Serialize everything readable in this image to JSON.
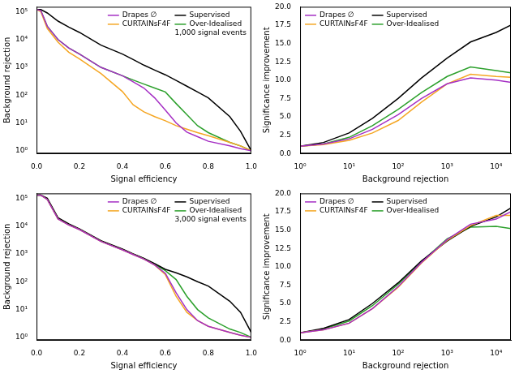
{
  "chart_data": [
    {
      "type": "line",
      "xlabel": "Signal efficiency",
      "ylabel": "Background rejection",
      "annotation": "1,000 signal events",
      "log": "y",
      "grid": false,
      "legend": "upper right",
      "xlim": [
        0,
        1
      ],
      "ylim": [
        0.8,
        150000
      ],
      "xticks": [
        {
          "value": 0,
          "label": "0.0"
        },
        {
          "value": 0.2,
          "label": "0.2"
        },
        {
          "value": 0.4,
          "label": "0.4"
        },
        {
          "value": 0.6,
          "label": "0.6"
        },
        {
          "value": 0.8,
          "label": "0.8"
        },
        {
          "value": 1,
          "label": "1.0"
        }
      ],
      "yticks": [
        {
          "value": 1,
          "label": "10⁰"
        },
        {
          "value": 10,
          "label": "10¹"
        },
        {
          "value": 100,
          "label": "10²"
        },
        {
          "value": 1000,
          "label": "10³"
        },
        {
          "value": 10000,
          "label": "10⁴"
        },
        {
          "value": 100000,
          "label": "10⁵"
        }
      ],
      "x": [
        0,
        0.02,
        0.05,
        0.1,
        0.15,
        0.2,
        0.3,
        0.4,
        0.45,
        0.5,
        0.55,
        0.6,
        0.65,
        0.7,
        0.75,
        0.8,
        0.9,
        0.95,
        1.0
      ],
      "series": [
        {
          "name": "Drapes ∅",
          "color": "#a52fc4",
          "values": [
            120000,
            110000,
            30000,
            10000,
            5000,
            3000,
            1000,
            500,
            300,
            180,
            80,
            29,
            10,
            4.7,
            3.2,
            2.2,
            1.5,
            1.2,
            1
          ]
        },
        {
          "name": "CURTAINsF4F",
          "color": "#f5a623",
          "values": [
            120000,
            100000,
            25000,
            8000,
            3500,
            2000,
            600,
            135,
            45,
            25,
            17,
            12,
            8,
            6,
            4.5,
            3.5,
            2,
            1.5,
            1
          ]
        },
        {
          "name": "Supervised",
          "color": "#000000",
          "values": [
            120000,
            120000,
            90000,
            46000,
            28000,
            18000,
            6300,
            3000,
            1900,
            1200,
            800,
            540,
            340,
            210,
            130,
            80,
            17,
            5,
            1
          ]
        },
        {
          "name": "Over-Idealised",
          "color": "#2ca02c",
          "values": [
            120000,
            110000,
            30000,
            10000,
            5000,
            3000,
            1000,
            500,
            350,
            250,
            180,
            130,
            50,
            20,
            8,
            4.5,
            2,
            1.5,
            1
          ]
        }
      ]
    },
    {
      "type": "line",
      "xlabel": "Background rejection",
      "ylabel": "Significance improvement",
      "log": "x",
      "grid": false,
      "legend": "upper left",
      "xlim": [
        1,
        20000
      ],
      "ylim": [
        0,
        20
      ],
      "xticks": [
        {
          "value": 1,
          "label": "10⁰"
        },
        {
          "value": 10,
          "label": "10¹"
        },
        {
          "value": 100,
          "label": "10²"
        },
        {
          "value": 1000,
          "label": "10³"
        },
        {
          "value": 10000,
          "label": "10⁴"
        }
      ],
      "yticks": [
        {
          "value": 0,
          "label": "0.0"
        },
        2.5,
        {
          "value": 5,
          "label": "5.0"
        },
        7.5,
        {
          "value": 10,
          "label": "10.0"
        },
        12.5,
        {
          "value": 15,
          "label": "15.0"
        },
        17.5,
        {
          "value": 20,
          "label": "20.0"
        }
      ],
      "x": [
        1,
        3,
        10,
        30,
        100,
        300,
        1000,
        3000,
        10000,
        20000
      ],
      "series": [
        {
          "name": "Drapes ∅",
          "color": "#a52fc4",
          "values": [
            1,
            1.3,
            2,
            3.3,
            5.3,
            7.5,
            9.5,
            10.3,
            10,
            9.7
          ]
        },
        {
          "name": "CURTAINsF4F",
          "color": "#f5a623",
          "values": [
            1,
            1.2,
            1.8,
            2.8,
            4.5,
            7,
            9.5,
            10.8,
            10.5,
            10.4
          ]
        },
        {
          "name": "Supervised",
          "color": "#000000",
          "values": [
            1,
            1.5,
            2.8,
            4.8,
            7.5,
            10.3,
            13,
            15.2,
            16.5,
            17.5
          ]
        },
        {
          "name": "Over-Idealised",
          "color": "#2ca02c",
          "values": [
            1,
            1.3,
            2.2,
            3.8,
            6,
            8.3,
            10.5,
            11.8,
            11.3,
            11
          ]
        }
      ]
    },
    {
      "type": "line",
      "xlabel": "Signal efficiency",
      "ylabel": "Background rejection",
      "annotation": "3,000 signal events",
      "log": "y",
      "grid": false,
      "legend": "upper right",
      "xlim": [
        0,
        1
      ],
      "ylim": [
        0.8,
        150000
      ],
      "xticks": [
        {
          "value": 0,
          "label": "0.0"
        },
        {
          "value": 0.2,
          "label": "0.2"
        },
        {
          "value": 0.4,
          "label": "0.4"
        },
        {
          "value": 0.6,
          "label": "0.6"
        },
        {
          "value": 0.8,
          "label": "0.8"
        },
        {
          "value": 1,
          "label": "1.0"
        }
      ],
      "yticks": [
        {
          "value": 1,
          "label": "10⁰"
        },
        {
          "value": 10,
          "label": "10¹"
        },
        {
          "value": 100,
          "label": "10²"
        },
        {
          "value": 1000,
          "label": "10³"
        },
        {
          "value": 10000,
          "label": "10⁴"
        },
        {
          "value": 100000,
          "label": "10⁵"
        }
      ],
      "x": [
        0,
        0.02,
        0.05,
        0.1,
        0.15,
        0.2,
        0.3,
        0.4,
        0.45,
        0.5,
        0.55,
        0.6,
        0.65,
        0.7,
        0.75,
        0.8,
        0.9,
        0.95,
        1.0
      ],
      "series": [
        {
          "name": "Drapes ∅",
          "color": "#a52fc4",
          "values": [
            130000,
            130000,
            90000,
            18000,
            11000,
            7500,
            2800,
            1400,
            950,
            650,
            400,
            200,
            40,
            10,
            4,
            2.5,
            1.5,
            1.2,
            1
          ]
        },
        {
          "name": "CURTAINsF4F",
          "color": "#f5a623",
          "values": [
            130000,
            130000,
            90000,
            18000,
            11000,
            7500,
            2800,
            1400,
            950,
            650,
            400,
            180,
            30,
            8,
            4,
            2.5,
            1.5,
            1.2,
            1
          ]
        },
        {
          "name": "Supervised",
          "color": "#000000",
          "values": [
            130000,
            130000,
            100000,
            20000,
            12000,
            8000,
            3000,
            1500,
            1000,
            700,
            450,
            280,
            210,
            150,
            100,
            70,
            20,
            8,
            1.5
          ]
        },
        {
          "name": "Over-Idealised",
          "color": "#2ca02c",
          "values": [
            130000,
            130000,
            95000,
            19000,
            11500,
            7800,
            2900,
            1450,
            980,
            680,
            420,
            250,
            120,
            30,
            10,
            5,
            2,
            1.5,
            1
          ]
        }
      ]
    },
    {
      "type": "line",
      "xlabel": "Background rejection",
      "ylabel": "Significance improvement",
      "log": "x",
      "grid": false,
      "legend": "upper left",
      "xlim": [
        1,
        20000
      ],
      "ylim": [
        0,
        20
      ],
      "xticks": [
        {
          "value": 1,
          "label": "10⁰"
        },
        {
          "value": 10,
          "label": "10¹"
        },
        {
          "value": 100,
          "label": "10²"
        },
        {
          "value": 1000,
          "label": "10³"
        },
        {
          "value": 10000,
          "label": "10⁴"
        }
      ],
      "yticks": [
        {
          "value": 0,
          "label": "0.0"
        },
        2.5,
        {
          "value": 5,
          "label": "5.0"
        },
        7.5,
        {
          "value": 10,
          "label": "10.0"
        },
        12.5,
        {
          "value": 15,
          "label": "15.0"
        },
        17.5,
        {
          "value": 20,
          "label": "20.0"
        }
      ],
      "x": [
        1,
        3,
        10,
        30,
        100,
        300,
        1000,
        3000,
        10000,
        20000
      ],
      "series": [
        {
          "name": "Drapes ∅",
          "color": "#a52fc4",
          "values": [
            1,
            1.4,
            2.3,
            4.3,
            7.3,
            10.6,
            13.7,
            15.8,
            16.5,
            17.5
          ]
        },
        {
          "name": "CURTAINsF4F",
          "color": "#f5a623",
          "values": [
            1,
            1.4,
            2.3,
            4.3,
            7.2,
            10.5,
            13.6,
            15.6,
            17,
            17
          ]
        },
        {
          "name": "Supervised",
          "color": "#000000",
          "values": [
            1,
            1.6,
            2.8,
            5,
            7.8,
            10.8,
            13.5,
            15.5,
            16.8,
            18
          ]
        },
        {
          "name": "Over-Idealised",
          "color": "#2ca02c",
          "values": [
            1,
            1.5,
            2.6,
            4.7,
            7.6,
            10.7,
            13.8,
            15.4,
            15.5,
            15.2
          ]
        }
      ]
    }
  ]
}
